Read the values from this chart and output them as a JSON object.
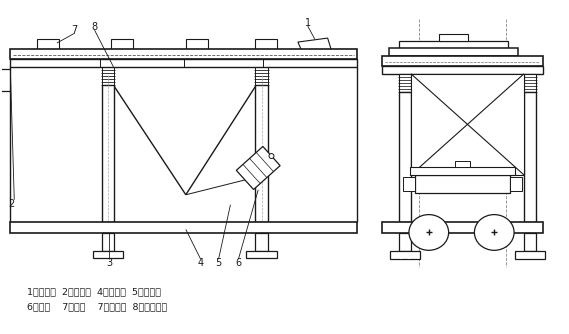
{
  "bg_color": "#ffffff",
  "line_color": "#1a1a1a",
  "caption_line1": "1、进料口  2、出料口  4、筛架体  5、电机架",
  "caption_line2": "6、电机    7、支架    7、筛上盖  8、隔振弹簧",
  "figsize": [
    5.69,
    3.34
  ],
  "dpi": 100
}
